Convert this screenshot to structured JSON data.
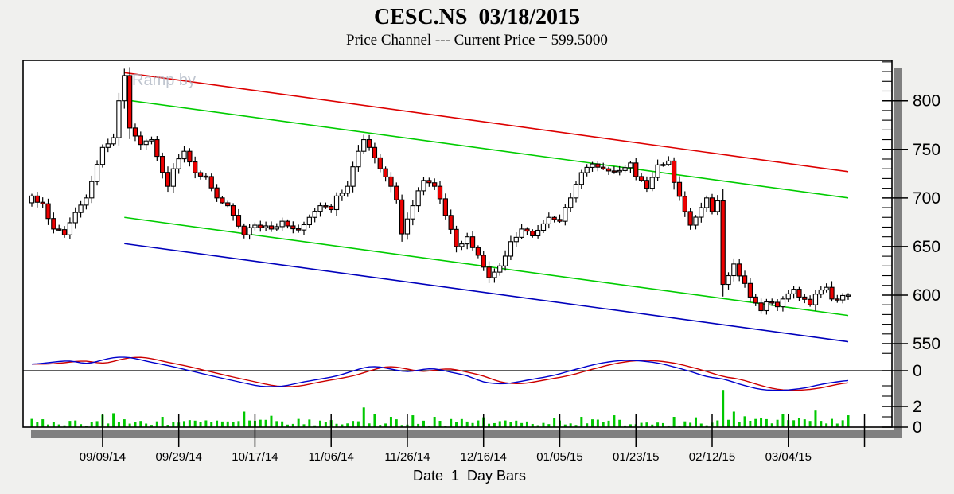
{
  "header": {
    "title": "CESC.NS  03/18/2015",
    "subtitle": "Price Channel --- Current Price = 599.5000"
  },
  "footer": {
    "xaxis_label": "Date  1  Day Bars"
  },
  "watermark": "Ramp by",
  "colors": {
    "background": "#f0f0ee",
    "plot_bg": "#ffffff",
    "shadow": "#808080",
    "candle_up": "#ffffff",
    "candle_down": "#ee0000",
    "candle_outline": "#000000",
    "channel_red": "#dd0000",
    "channel_green": "#00cc00",
    "channel_blue": "#0000bb",
    "osc_fast": "#0000cc",
    "osc_slow": "#cc0000",
    "volume": "#00c800",
    "axis": "#000000"
  },
  "chart_data": [
    {
      "pane": "price",
      "type": "candlestick",
      "symbol": "CESC.NS",
      "date": "03/18/2015",
      "bar_interval": "1 Day",
      "current_price": 599.5,
      "ylim": [
        540,
        841
      ],
      "y_axis": {
        "side": "right",
        "labels": [
          "800",
          "750",
          "700",
          "650",
          "600",
          "550"
        ],
        "label_values": [
          800,
          750,
          700,
          650,
          600,
          550
        ],
        "minor_step": 10,
        "grid": false
      },
      "x_ticks": [
        {
          "i": 13,
          "label": "09/09/14"
        },
        {
          "i": 27,
          "label": "09/29/14"
        },
        {
          "i": 41,
          "label": "10/17/14"
        },
        {
          "i": 55,
          "label": "11/06/14"
        },
        {
          "i": 69,
          "label": "11/26/14"
        },
        {
          "i": 83,
          "label": "12/16/14"
        },
        {
          "i": 97,
          "label": "01/05/15"
        },
        {
          "i": 111,
          "label": "01/23/15"
        },
        {
          "i": 125,
          "label": "02/12/15"
        },
        {
          "i": 139,
          "label": "03/04/15"
        },
        {
          "i": 153,
          "label": ""
        }
      ],
      "close_anchors": [
        [
          0,
          702
        ],
        [
          2,
          694
        ],
        [
          4,
          668
        ],
        [
          6,
          662
        ],
        [
          8,
          685
        ],
        [
          10,
          700
        ],
        [
          13,
          752
        ],
        [
          15,
          762
        ],
        [
          16,
          800
        ],
        [
          17,
          826
        ],
        [
          18,
          772
        ],
        [
          20,
          755
        ],
        [
          22,
          760
        ],
        [
          25,
          712
        ],
        [
          26,
          730
        ],
        [
          28,
          748
        ],
        [
          30,
          726
        ],
        [
          32,
          722
        ],
        [
          34,
          700
        ],
        [
          36,
          692
        ],
        [
          39,
          662
        ],
        [
          41,
          672
        ],
        [
          44,
          668
        ],
        [
          46,
          676
        ],
        [
          49,
          667
        ],
        [
          51,
          680
        ],
        [
          53,
          692
        ],
        [
          55,
          688
        ],
        [
          56,
          702
        ],
        [
          58,
          712
        ],
        [
          60,
          748
        ],
        [
          61,
          760
        ],
        [
          62,
          752
        ],
        [
          64,
          730
        ],
        [
          66,
          712
        ],
        [
          67,
          698
        ],
        [
          68,
          663
        ],
        [
          70,
          692
        ],
        [
          72,
          718
        ],
        [
          74,
          712
        ],
        [
          76,
          682
        ],
        [
          78,
          650
        ],
        [
          80,
          660
        ],
        [
          82,
          641
        ],
        [
          84,
          618
        ],
        [
          86,
          630
        ],
        [
          88,
          655
        ],
        [
          90,
          668
        ],
        [
          92,
          661
        ],
        [
          95,
          680
        ],
        [
          97,
          676
        ],
        [
          99,
          700
        ],
        [
          101,
          726
        ],
        [
          103,
          735
        ],
        [
          105,
          730
        ],
        [
          107,
          727
        ],
        [
          110,
          736
        ],
        [
          111,
          722
        ],
        [
          113,
          710
        ],
        [
          115,
          734
        ],
        [
          117,
          738
        ],
        [
          118,
          716
        ],
        [
          120,
          686
        ],
        [
          121,
          672
        ],
        [
          123,
          690
        ],
        [
          124,
          700
        ],
        [
          125,
          686
        ],
        [
          126,
          697
        ],
        [
          127,
          611
        ],
        [
          128,
          620
        ],
        [
          129,
          632
        ],
        [
          131,
          612
        ],
        [
          132,
          598
        ],
        [
          134,
          584
        ],
        [
          135,
          593
        ],
        [
          137,
          588
        ],
        [
          138,
          596
        ],
        [
          140,
          606
        ],
        [
          141,
          598
        ],
        [
          143,
          590
        ],
        [
          144,
          601
        ],
        [
          146,
          608
        ],
        [
          147,
          596
        ],
        [
          148,
          595
        ],
        [
          150,
          600
        ]
      ],
      "channel_lines": [
        {
          "name": "channel-top-red",
          "color": "#dd0000",
          "from": [
            17,
            829
          ],
          "to": [
            150,
            727
          ]
        },
        {
          "name": "channel-upper-green",
          "color": "#00cc00",
          "from": [
            17,
            801
          ],
          "to": [
            150,
            700
          ]
        },
        {
          "name": "channel-lower-green",
          "color": "#00cc00",
          "from": [
            17,
            680
          ],
          "to": [
            150,
            579
          ]
        },
        {
          "name": "channel-bottom-blue",
          "color": "#0000bb",
          "from": [
            17,
            653
          ],
          "to": [
            150,
            552
          ]
        }
      ]
    },
    {
      "pane": "oscillator",
      "type": "line",
      "zero_label": "0",
      "series": [
        {
          "name": "fast",
          "color": "#0000cc",
          "anchors": [
            [
              0,
              8
            ],
            [
              3,
              10
            ],
            [
              7,
              13
            ],
            [
              10,
              8
            ],
            [
              15,
              17
            ],
            [
              18,
              17
            ],
            [
              21,
              12
            ],
            [
              26,
              5
            ],
            [
              29,
              0
            ],
            [
              34,
              -8
            ],
            [
              38,
              -14
            ],
            [
              42,
              -20
            ],
            [
              46,
              -20
            ],
            [
              50,
              -14
            ],
            [
              56,
              -7
            ],
            [
              61,
              4
            ],
            [
              63,
              6
            ],
            [
              66,
              2
            ],
            [
              69,
              -2
            ],
            [
              72,
              2
            ],
            [
              74,
              3
            ],
            [
              77,
              -2
            ],
            [
              80,
              -6
            ],
            [
              83,
              -15
            ],
            [
              87,
              -17
            ],
            [
              91,
              -12
            ],
            [
              96,
              -6
            ],
            [
              99,
              0
            ],
            [
              104,
              9
            ],
            [
              108,
              13
            ],
            [
              111,
              13
            ],
            [
              115,
              10
            ],
            [
              119,
              3
            ],
            [
              122,
              -3
            ],
            [
              124,
              -8
            ],
            [
              127,
              -10
            ],
            [
              130,
              -17
            ],
            [
              134,
              -24
            ],
            [
              138,
              -25
            ],
            [
              142,
              -22
            ],
            [
              145,
              -17
            ],
            [
              150,
              -12
            ]
          ]
        },
        {
          "name": "slow",
          "color": "#cc0000",
          "lag_bars": 3
        }
      ]
    },
    {
      "pane": "volume",
      "type": "bar",
      "y_axis": {
        "side": "right",
        "labels": [
          "2",
          "0"
        ],
        "label_values": [
          2,
          0
        ],
        "minor_values": [
          4,
          3,
          1
        ],
        "units": "millions"
      },
      "base_range": [
        0.15,
        0.8
      ],
      "spikes": [
        [
          13,
          1.2
        ],
        [
          15,
          1.35
        ],
        [
          24,
          1.0
        ],
        [
          39,
          1.5
        ],
        [
          44,
          1.1
        ],
        [
          61,
          1.9
        ],
        [
          63,
          1.3
        ],
        [
          66,
          1.0
        ],
        [
          70,
          1.15
        ],
        [
          74,
          1.0
        ],
        [
          83,
          0.95
        ],
        [
          96,
          0.9
        ],
        [
          101,
          1.0
        ],
        [
          107,
          1.15
        ],
        [
          118,
          1.0
        ],
        [
          122,
          0.95
        ],
        [
          127,
          3.6
        ],
        [
          129,
          1.5
        ],
        [
          131,
          1.05
        ],
        [
          134,
          0.9
        ],
        [
          138,
          1.25
        ],
        [
          141,
          0.85
        ],
        [
          144,
          1.6
        ],
        [
          147,
          0.8
        ],
        [
          150,
          1.15
        ]
      ]
    }
  ]
}
